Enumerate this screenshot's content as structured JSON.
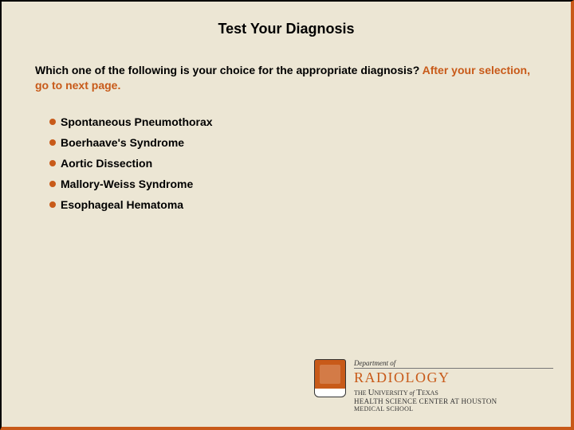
{
  "colors": {
    "background": "#ece6d4",
    "accent": "#c85a19",
    "text": "#000000"
  },
  "title": "Test Your Diagnosis",
  "question": {
    "prompt": "Which one of the following is your choice for the appropriate diagnosis? ",
    "instruction": "After your selection, go to next page."
  },
  "options": [
    "Spontaneous Pneumothorax",
    "Boerhaave's Syndrome",
    "Aortic Dissection",
    "Mallory-Weiss Syndrome",
    "Esophageal Hematoma"
  ],
  "logo": {
    "department_prefix": "Department of",
    "department": "RADIOLOGY",
    "university_the": "THE ",
    "university_u": "U",
    "university_rest": "NIVERSITY ",
    "university_of": "of",
    "university_t": " T",
    "university_exas": "EXAS",
    "center": "HEALTH SCIENCE CENTER AT HOUSTON",
    "school": "MEDICAL SCHOOL"
  }
}
